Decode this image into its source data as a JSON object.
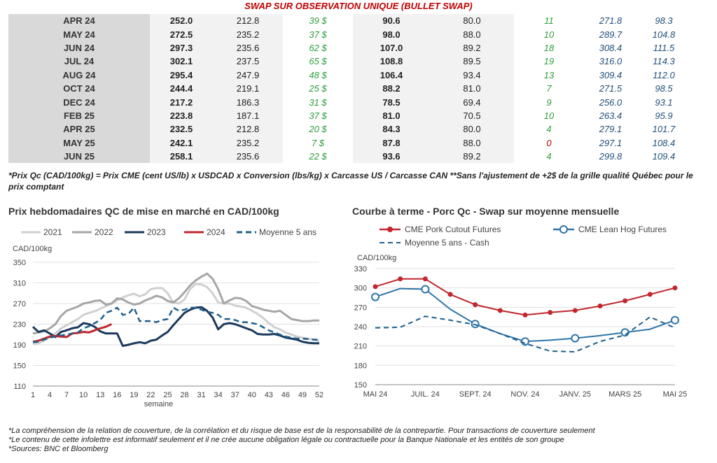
{
  "header": {
    "title": "SWAP SUR OBSERVATION UNIQUE (BULLET SWAP)"
  },
  "table": {
    "rows": [
      [
        "APR 24",
        "252.0",
        "212.8",
        "39 $",
        "90.6",
        "80.0",
        "11",
        "271.8",
        "98.3"
      ],
      [
        "MAY 24",
        "272.5",
        "235.2",
        "37 $",
        "98.0",
        "88.0",
        "10",
        "289.7",
        "104.8"
      ],
      [
        "JUN 24",
        "297.3",
        "235.6",
        "62 $",
        "107.0",
        "89.2",
        "18",
        "308.4",
        "111.5"
      ],
      [
        "JUL 24",
        "302.1",
        "237.5",
        "65 $",
        "108.8",
        "89.5",
        "19",
        "316.0",
        "114.3"
      ],
      [
        "AUG 24",
        "295.4",
        "247.9",
        "48 $",
        "106.4",
        "93.4",
        "13",
        "309.4",
        "112.0"
      ],
      [
        "OCT 24",
        "244.4",
        "219.1",
        "25 $",
        "88.2",
        "81.0",
        "7",
        "271.5",
        "98.5"
      ],
      [
        "DEC 24",
        "217.2",
        "186.3",
        "31 $",
        "78.5",
        "69.4",
        "9",
        "256.0",
        "93.1"
      ],
      [
        "FEB 25",
        "223.8",
        "187.1",
        "37 $",
        "81.0",
        "70.5",
        "10",
        "263.4",
        "95.9"
      ],
      [
        "APR 25",
        "232.5",
        "212.8",
        "20 $",
        "84.3",
        "80.0",
        "4",
        "279.1",
        "101.7"
      ],
      [
        "MAY 25",
        "242.1",
        "235.2",
        "7 $",
        "87.8",
        "88.0",
        "0",
        "297.1",
        "108.4"
      ],
      [
        "JUN 25",
        "258.1",
        "235.6",
        "22 $",
        "93.6",
        "89.2",
        "4",
        "299.8",
        "109.4"
      ]
    ]
  },
  "footnote_top": "*Prix Qc (CAD/100kg) = Prix CME (cent US/lb) x USDCAD x Conversion (lbs/kg) x Carcasse US / Carcasse CAN **Sans l'ajustement de +2$ de la grille qualité Québec pour le prix comptant",
  "footnotes": [
    "*La compréhension de la relation de couverture, de la corrélation et du risque de base est de la responsabilité de la contrepartie. Pour transactions de couverture seulement",
    "*Le contenu de cette infolettre est informatif seulement et il ne crée aucune obligation légale ou contractuelle pour la Banque Nationale et les entités de son groupe",
    "*Sources: BNC et Bloomberg"
  ],
  "chart_data": [
    {
      "type": "line",
      "title": "Prix hebdomadaires QC de mise en marché en CAD/100kg",
      "ylabel": "CAD/100kg",
      "xlabel": "semaine",
      "ylim": [
        110,
        350
      ],
      "xlim": [
        1,
        52
      ],
      "yticks": [
        "110",
        "150",
        "190",
        "230",
        "270",
        "310",
        "350"
      ],
      "xticks": [
        "1",
        "4",
        "7",
        "10",
        "13",
        "16",
        "19",
        "22",
        "25",
        "28",
        "31",
        "34",
        "37",
        "40",
        "43",
        "46",
        "49",
        "52"
      ],
      "legend_position": "top",
      "series": [
        {
          "name": "2021",
          "color": "#d0d0d0",
          "dash": false,
          "x": [
            1,
            2,
            3,
            4,
            5,
            6,
            7,
            8,
            9,
            10,
            11,
            12,
            13,
            14,
            15,
            16,
            17,
            18,
            19,
            20,
            21,
            22,
            23,
            24,
            25,
            26,
            27,
            28,
            29,
            30,
            31,
            32,
            33,
            34,
            35,
            36,
            37,
            38,
            39,
            40,
            41,
            42,
            43,
            44,
            45,
            46,
            47,
            48,
            49,
            50,
            51,
            52
          ],
          "y": [
            192,
            193,
            198,
            205,
            212,
            222,
            228,
            234,
            240,
            248,
            252,
            255,
            260,
            265,
            270,
            276,
            282,
            286,
            289,
            284,
            288,
            298,
            300,
            300,
            290,
            272,
            270,
            278,
            298,
            308,
            307,
            302,
            290,
            272,
            270,
            270,
            266,
            264,
            262,
            256,
            250,
            242,
            232,
            224,
            220,
            214,
            210,
            206,
            204,
            202,
            200,
            198
          ]
        },
        {
          "name": "2022",
          "color": "#a6a6a6",
          "dash": false,
          "x": [
            1,
            2,
            3,
            4,
            5,
            6,
            7,
            8,
            9,
            10,
            11,
            12,
            13,
            14,
            15,
            16,
            17,
            18,
            19,
            20,
            21,
            22,
            23,
            24,
            25,
            26,
            27,
            28,
            29,
            30,
            31,
            32,
            33,
            34,
            35,
            36,
            37,
            38,
            39,
            40,
            41,
            42,
            43,
            44,
            45,
            46,
            47,
            48,
            49,
            50,
            51,
            52
          ],
          "y": [
            212,
            214,
            216,
            222,
            230,
            246,
            256,
            260,
            264,
            270,
            272,
            275,
            276,
            268,
            270,
            280,
            278,
            272,
            268,
            270,
            276,
            280,
            285,
            282,
            275,
            272,
            280,
            292,
            305,
            315,
            322,
            328,
            318,
            298,
            270,
            276,
            281,
            280,
            275,
            265,
            262,
            258,
            256,
            254,
            256,
            248,
            240,
            238,
            236,
            236,
            237,
            237
          ]
        },
        {
          "name": "2023",
          "color": "#1b3a5c",
          "dash": false,
          "x": [
            1,
            2,
            3,
            4,
            5,
            6,
            7,
            8,
            9,
            10,
            11,
            12,
            13,
            14,
            15,
            16,
            17,
            18,
            19,
            20,
            21,
            22,
            23,
            24,
            25,
            26,
            27,
            28,
            29,
            30,
            31,
            32,
            33,
            34,
            35,
            36,
            37,
            38,
            39,
            40,
            41,
            42,
            43,
            44,
            45,
            46,
            47,
            48,
            49,
            50,
            51,
            52
          ],
          "y": [
            225,
            215,
            218,
            212,
            205,
            215,
            218,
            222,
            224,
            232,
            230,
            225,
            216,
            212,
            212,
            212,
            188,
            190,
            193,
            195,
            193,
            198,
            200,
            208,
            215,
            228,
            240,
            252,
            258,
            262,
            263,
            256,
            243,
            220,
            230,
            232,
            230,
            226,
            222,
            218,
            211,
            210,
            210,
            211,
            208,
            204,
            202,
            200,
            196,
            194,
            193,
            193
          ]
        },
        {
          "name": "2024",
          "color": "#c1272d",
          "dash": false,
          "x": [
            1,
            2,
            3,
            4,
            5,
            6,
            7,
            8,
            9,
            10,
            11,
            12,
            13,
            14,
            15
          ],
          "y": [
            196,
            198,
            202,
            206,
            207,
            206,
            205,
            212,
            213,
            215,
            214,
            218,
            222,
            225,
            230
          ]
        },
        {
          "name": "Moyenne 5 ans",
          "color": "#1f5f8b",
          "dash": true,
          "x": [
            1,
            2,
            3,
            4,
            5,
            6,
            7,
            8,
            9,
            10,
            11,
            12,
            13,
            14,
            15,
            16,
            17,
            18,
            19,
            20,
            21,
            22,
            23,
            24,
            25,
            26,
            27,
            28,
            29,
            30,
            31,
            32,
            33,
            34,
            35,
            36,
            37,
            38,
            39,
            40,
            41,
            42,
            43,
            44,
            45,
            46,
            47,
            48,
            49,
            50,
            51,
            52
          ],
          "y": [
            195,
            196,
            200,
            204,
            206,
            208,
            210,
            212,
            214,
            222,
            226,
            232,
            238,
            252,
            256,
            262,
            248,
            250,
            262,
            236,
            236,
            236,
            234,
            238,
            240,
            262,
            256,
            258,
            262,
            262,
            258,
            254,
            252,
            248,
            240,
            240,
            238,
            234,
            234,
            232,
            230,
            224,
            218,
            214,
            210,
            206,
            204,
            202,
            202,
            201,
            200,
            200
          ]
        }
      ]
    },
    {
      "type": "line",
      "title": "Courbe à terme - Porc Qc - Swap sur moyenne mensuelle",
      "ylabel": "CAD/100kg",
      "ylim": [
        150,
        330
      ],
      "yticks": [
        "150",
        "180",
        "210",
        "240",
        "270",
        "300",
        "330"
      ],
      "x_categories": [
        "MAI 24",
        "JUIN 24",
        "JUIL. 24",
        "AOÛT 24",
        "SEPT. 24",
        "OCT. 24",
        "NOV. 24",
        "DÉC. 24",
        "JANV. 25",
        "FÉVR. 25",
        "MARS 25",
        "AVR. 25",
        "MAI 25"
      ],
      "xtick_labels": [
        "MAI 24",
        "JUIL. 24",
        "SEPT. 24",
        "NOV. 24",
        "JANV. 25",
        "MARS 25",
        "MAI 25"
      ],
      "legend_position": "top",
      "series": [
        {
          "name": "CME Pork Cutout Futures",
          "color": "#c1272d",
          "marker": "filled",
          "dash": false,
          "values": [
            302,
            314,
            314,
            290,
            274,
            265,
            258,
            262,
            265,
            272,
            280,
            290,
            300
          ]
        },
        {
          "name": "CME Lean Hog Futures",
          "color": "#2e75a8",
          "marker": "hollow",
          "dash": false,
          "values": [
            286,
            299,
            298,
            267,
            244,
            229,
            217,
            219,
            222,
            226,
            231,
            236,
            250
          ]
        },
        {
          "name": "Moyenne 5 ans - Cash",
          "color": "#1f5f8b",
          "marker": "none",
          "dash": true,
          "values": [
            238,
            239,
            256,
            250,
            243,
            229,
            214,
            202,
            201,
            217,
            227,
            255,
            238
          ]
        }
      ]
    }
  ]
}
